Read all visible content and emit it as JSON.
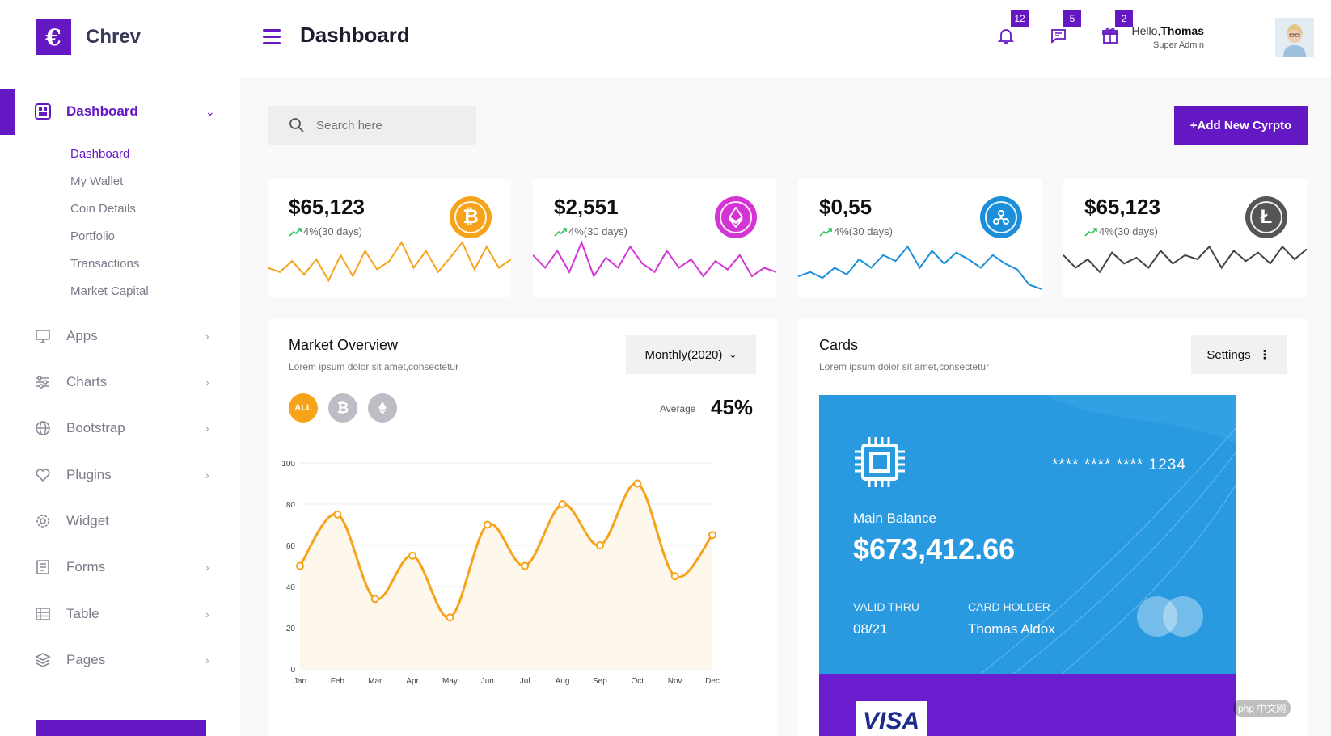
{
  "brand": {
    "logo_letter": "€",
    "name": "Chrev"
  },
  "sidebar": {
    "active": {
      "label": "Dashboard",
      "icon": "dashboard-icon"
    },
    "subitems": [
      "Dashboard",
      "My Wallet",
      "Coin Details",
      "Portfolio",
      "Transactions",
      "Market Capital"
    ],
    "items": [
      {
        "label": "Apps",
        "icon": "monitor-icon"
      },
      {
        "label": "Charts",
        "icon": "sliders-icon"
      },
      {
        "label": "Bootstrap",
        "icon": "globe-icon"
      },
      {
        "label": "Plugins",
        "icon": "heart-icon"
      },
      {
        "label": "Widget",
        "icon": "gear-icon"
      },
      {
        "label": "Forms",
        "icon": "form-icon"
      },
      {
        "label": "Table",
        "icon": "table-icon"
      },
      {
        "label": "Pages",
        "icon": "layers-icon"
      }
    ]
  },
  "header": {
    "title": "Dashboard",
    "notifications": {
      "bell": "12",
      "chat": "5",
      "gift": "2"
    },
    "greeting_prefix": "Hello,",
    "user_name": "Thomas",
    "user_role": "Super Admin"
  },
  "search": {
    "placeholder": "Search here"
  },
  "add_button": "+Add New Cyrpto",
  "stats": [
    {
      "value": "$65,123",
      "change": "4%(30 days)",
      "coin": "bitcoin",
      "color": "#f7a31a",
      "line_color": "#f7a31a",
      "series": [
        30,
        25,
        38,
        22,
        40,
        15,
        45,
        20,
        50,
        28,
        38,
        60,
        30,
        50,
        25,
        42,
        60,
        28,
        55,
        30,
        40
      ]
    },
    {
      "value": "$2,551",
      "change": "4%(30 days)",
      "coin": "ethereum",
      "color": "#d534d5",
      "line_color": "#d534d5",
      "series": [
        45,
        30,
        50,
        25,
        60,
        20,
        42,
        30,
        55,
        35,
        25,
        50,
        30,
        40,
        20,
        38,
        28,
        45,
        20,
        30,
        25
      ]
    },
    {
      "value": "$0,55",
      "change": "4%(30 days)",
      "coin": "ripple",
      "color": "#1b8fd9",
      "line_color": "#1b8fd9",
      "series": [
        20,
        25,
        18,
        30,
        22,
        40,
        30,
        45,
        38,
        55,
        30,
        50,
        35,
        48,
        40,
        30,
        45,
        35,
        28,
        10,
        5
      ]
    },
    {
      "value": "$65,123",
      "change": "4%(30 days)",
      "coin": "litecoin",
      "color": "#555555",
      "line_color": "#444444",
      "series": [
        45,
        30,
        40,
        25,
        48,
        35,
        42,
        30,
        50,
        35,
        45,
        40,
        55,
        30,
        50,
        38,
        48,
        35,
        55,
        40,
        52
      ]
    }
  ],
  "market": {
    "title": "Market Overview",
    "subtitle": "Lorem ipsum dolor sit amet,consectetur",
    "dropdown": "Monthly(2020)",
    "filters": {
      "all": "ALL",
      "btc_icon": "bitcoin-icon",
      "eth_icon": "ethereum-icon"
    },
    "average_label": "Average",
    "average_value": "45%"
  },
  "chart_data": {
    "type": "area",
    "categories": [
      "Jan",
      "Feb",
      "Mar",
      "Apr",
      "May",
      "Jun",
      "Jul",
      "Aug",
      "Sep",
      "Oct",
      "Nov",
      "Dec"
    ],
    "values": [
      50,
      75,
      34,
      55,
      25,
      70,
      50,
      80,
      60,
      90,
      45,
      65
    ],
    "ylim": [
      0,
      100
    ],
    "yticks": [
      0,
      20,
      40,
      60,
      80,
      100
    ],
    "line_color": "#f7a31a",
    "grid": true
  },
  "cards": {
    "title": "Cards",
    "subtitle": "Lorem ipsum dolor sit amet,consectetur",
    "settings_label": "Settings",
    "card_number": "**** **** **** 1234",
    "balance_label": "Main Balance",
    "balance": "$673,412.66",
    "valid_label": "VALID THRU",
    "valid_value": "08/21",
    "holder_label": "CARD HOLDER",
    "holder_value": "Thomas Aldox",
    "visa_label": "VISA"
  },
  "watermark": "php 中文网"
}
